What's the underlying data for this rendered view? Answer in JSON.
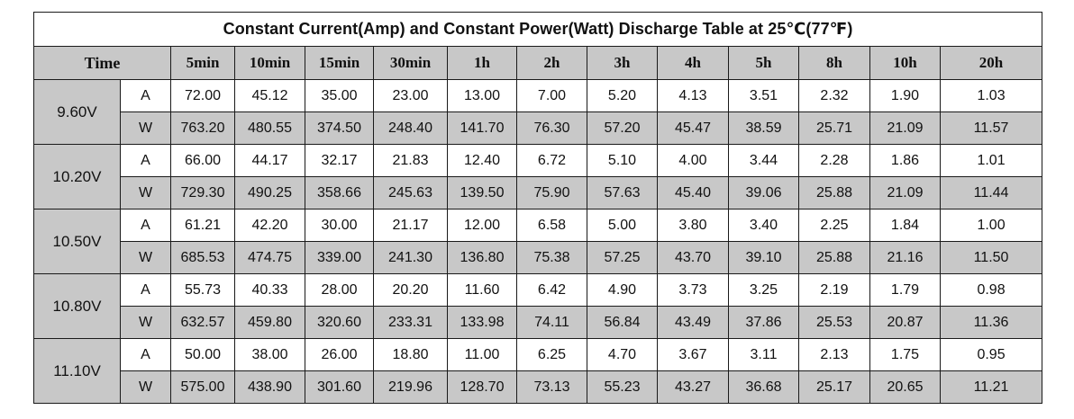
{
  "title": "Constant Current(Amp) and Constant Power(Watt) Discharge Table at 25℃(77℉)",
  "header": {
    "time": "Time",
    "columns": [
      "5min",
      "10min",
      "15min",
      "30min",
      "1h",
      "2h",
      "3h",
      "4h",
      "5h",
      "8h",
      "10h",
      "20h"
    ]
  },
  "groups": [
    {
      "voltage": "9.60V",
      "rows": [
        {
          "unit": "A",
          "values": [
            "72.00",
            "45.12",
            "35.00",
            "23.00",
            "13.00",
            "7.00",
            "5.20",
            "4.13",
            "3.51",
            "2.32",
            "1.90",
            "1.03"
          ]
        },
        {
          "unit": "W",
          "values": [
            "763.20",
            "480.55",
            "374.50",
            "248.40",
            "141.70",
            "76.30",
            "57.20",
            "45.47",
            "38.59",
            "25.71",
            "21.09",
            "11.57"
          ]
        }
      ]
    },
    {
      "voltage": "10.20V",
      "rows": [
        {
          "unit": "A",
          "values": [
            "66.00",
            "44.17",
            "32.17",
            "21.83",
            "12.40",
            "6.72",
            "5.10",
            "4.00",
            "3.44",
            "2.28",
            "1.86",
            "1.01"
          ]
        },
        {
          "unit": "W",
          "values": [
            "729.30",
            "490.25",
            "358.66",
            "245.63",
            "139.50",
            "75.90",
            "57.63",
            "45.40",
            "39.06",
            "25.88",
            "21.09",
            "11.44"
          ]
        }
      ]
    },
    {
      "voltage": "10.50V",
      "rows": [
        {
          "unit": "A",
          "values": [
            "61.21",
            "42.20",
            "30.00",
            "21.17",
            "12.00",
            "6.58",
            "5.00",
            "3.80",
            "3.40",
            "2.25",
            "1.84",
            "1.00"
          ]
        },
        {
          "unit": "W",
          "values": [
            "685.53",
            "474.75",
            "339.00",
            "241.30",
            "136.80",
            "75.38",
            "57.25",
            "43.70",
            "39.10",
            "25.88",
            "21.16",
            "11.50"
          ]
        }
      ]
    },
    {
      "voltage": "10.80V",
      "rows": [
        {
          "unit": "A",
          "values": [
            "55.73",
            "40.33",
            "28.00",
            "20.20",
            "11.60",
            "6.42",
            "4.90",
            "3.73",
            "3.25",
            "2.19",
            "1.79",
            "0.98"
          ]
        },
        {
          "unit": "W",
          "values": [
            "632.57",
            "459.80",
            "320.60",
            "233.31",
            "133.98",
            "74.11",
            "56.84",
            "43.49",
            "37.86",
            "25.53",
            "20.87",
            "11.36"
          ]
        }
      ]
    },
    {
      "voltage": "11.10V",
      "rows": [
        {
          "unit": "A",
          "values": [
            "50.00",
            "38.00",
            "26.00",
            "18.80",
            "11.00",
            "6.25",
            "4.70",
            "3.67",
            "3.11",
            "2.13",
            "1.75",
            "0.95"
          ]
        },
        {
          "unit": "W",
          "values": [
            "575.00",
            "438.90",
            "301.60",
            "219.96",
            "128.70",
            "73.13",
            "55.23",
            "43.27",
            "36.68",
            "25.17",
            "20.65",
            "11.21"
          ]
        }
      ]
    }
  ]
}
